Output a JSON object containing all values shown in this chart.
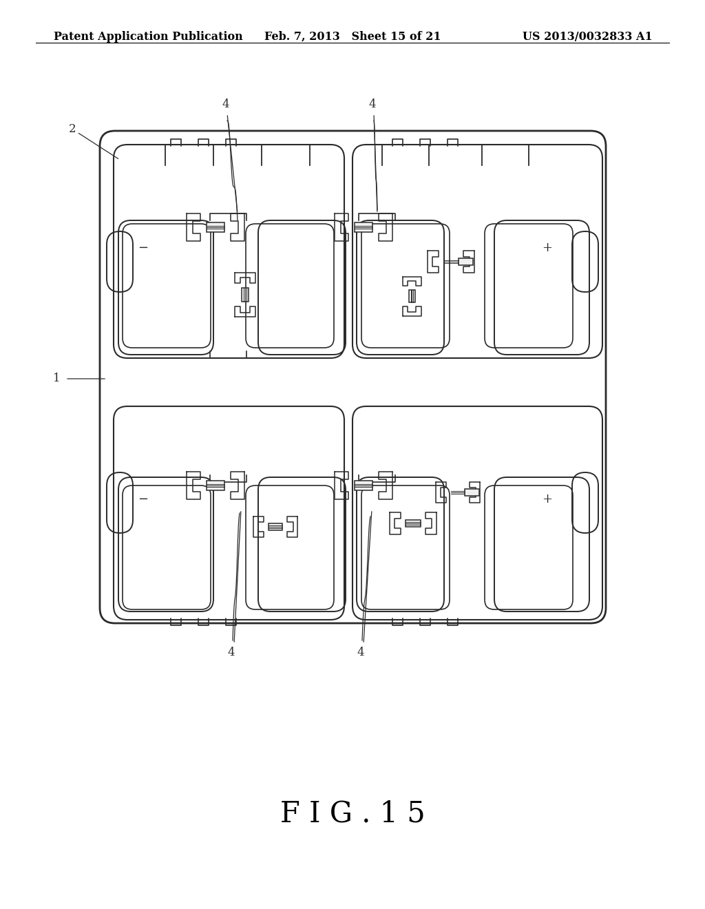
{
  "header_left": "Patent Application Publication",
  "header_mid": "Feb. 7, 2013   Sheet 15 of 21",
  "header_right": "US 2013/0032833 A1",
  "figure_label": "F I G . 1 5",
  "bg_color": "#ffffff",
  "line_color": "#2a2a2a",
  "fig_label_fontsize": 30,
  "header_fontsize": 11.5
}
